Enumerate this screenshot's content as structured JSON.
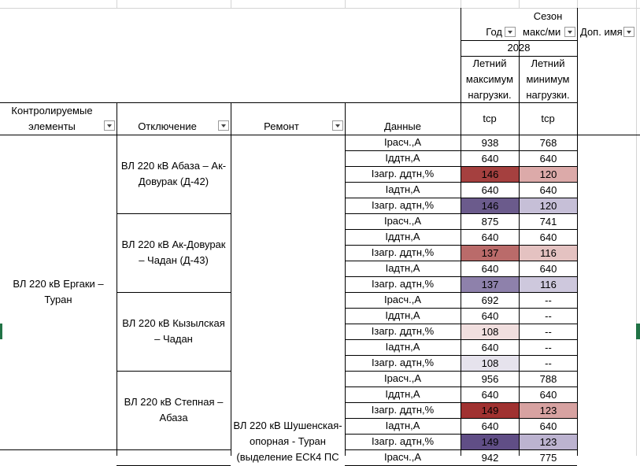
{
  "header": {
    "year": "Год",
    "season": "Сезон",
    "season_value": "макс/ми",
    "extra": "Доп. имя",
    "year_value": "2028",
    "col_e": "Летний максимум нагрузки.",
    "col_f": "Летний минимум нагрузки.",
    "controlled": "Контролируемые элементы",
    "outage": "Отключение",
    "repair": "Ремонт",
    "data": "Данные",
    "unit_e": "tср",
    "unit_f": "tср"
  },
  "table": {
    "controlled": "ВЛ 220 кВ Ергаки – Туран",
    "repair": "ВЛ 220 кВ Шушенская-опорная - Туран (выделение ЕСК4 ПС",
    "groups": [
      {
        "outage": "ВЛ 220 кВ Абаза – Ак-Довурак (Д-42)",
        "rows": [
          {
            "label": "Iрасч.,А",
            "values": [
              938,
              768
            ]
          },
          {
            "label": "Iддтн,А",
            "values": [
              640,
              640
            ]
          },
          {
            "label": "Iзагр. ддтн,%",
            "values": [
              146,
              120
            ],
            "colors": [
              "#a5403f",
              "#dcaaa9"
            ]
          },
          {
            "label": "Iадтн,А",
            "values": [
              640,
              640
            ]
          },
          {
            "label": "Iзагр. адтн,%",
            "values": [
              146,
              120
            ],
            "colors": [
              "#6b5b8c",
              "#c6bfd7"
            ]
          }
        ]
      },
      {
        "outage": "ВЛ 220 кВ Ак-Довурак – Чадан (Д-43)",
        "rows": [
          {
            "label": "Iрасч.,А",
            "values": [
              875,
              741
            ]
          },
          {
            "label": "Iддтн,А",
            "values": [
              640,
              640
            ]
          },
          {
            "label": "Iзагр. ддтн,%",
            "values": [
              137,
              116
            ],
            "colors": [
              "#ba6b6a",
              "#e4c2c1"
            ]
          },
          {
            "label": "Iадтн,А",
            "values": [
              640,
              640
            ]
          },
          {
            "label": "Iзагр. адтн,%",
            "values": [
              137,
              116
            ],
            "colors": [
              "#8e81ab",
              "#cec8dd"
            ]
          }
        ]
      },
      {
        "outage": "ВЛ 220 кВ Кызылская – Чадан",
        "rows": [
          {
            "label": "Iрасч.,А",
            "values": [
              692,
              "--"
            ]
          },
          {
            "label": "Iддтн,А",
            "values": [
              640,
              "--"
            ]
          },
          {
            "label": "Iзагр. ддтн,%",
            "values": [
              108,
              "--"
            ],
            "colors": [
              "#f1dfdf",
              "#ffffff"
            ]
          },
          {
            "label": "Iадтн,А",
            "values": [
              640,
              "--"
            ]
          },
          {
            "label": "Iзагр. адтн,%",
            "values": [
              108,
              "--"
            ],
            "colors": [
              "#e6e3ed",
              "#ffffff"
            ]
          }
        ]
      },
      {
        "outage": "ВЛ 220 кВ Степная – Абаза",
        "rows": [
          {
            "label": "Iрасч.,А",
            "values": [
              956,
              788
            ]
          },
          {
            "label": "Iддтн,А",
            "values": [
              640,
              640
            ]
          },
          {
            "label": "Iзагр. ддтн,%",
            "values": [
              149,
              123
            ],
            "colors": [
              "#a03231",
              "#d7a2a1"
            ]
          },
          {
            "label": "Iадтн,А",
            "values": [
              640,
              640
            ]
          },
          {
            "label": "Iзагр. адтн,%",
            "values": [
              149,
              123
            ],
            "colors": [
              "#604e86",
              "#bcb3d0"
            ]
          }
        ]
      },
      {
        "outage": "",
        "rows": [
          {
            "label": "Iрасч.,А",
            "values": [
              942,
              775
            ]
          }
        ]
      }
    ]
  }
}
